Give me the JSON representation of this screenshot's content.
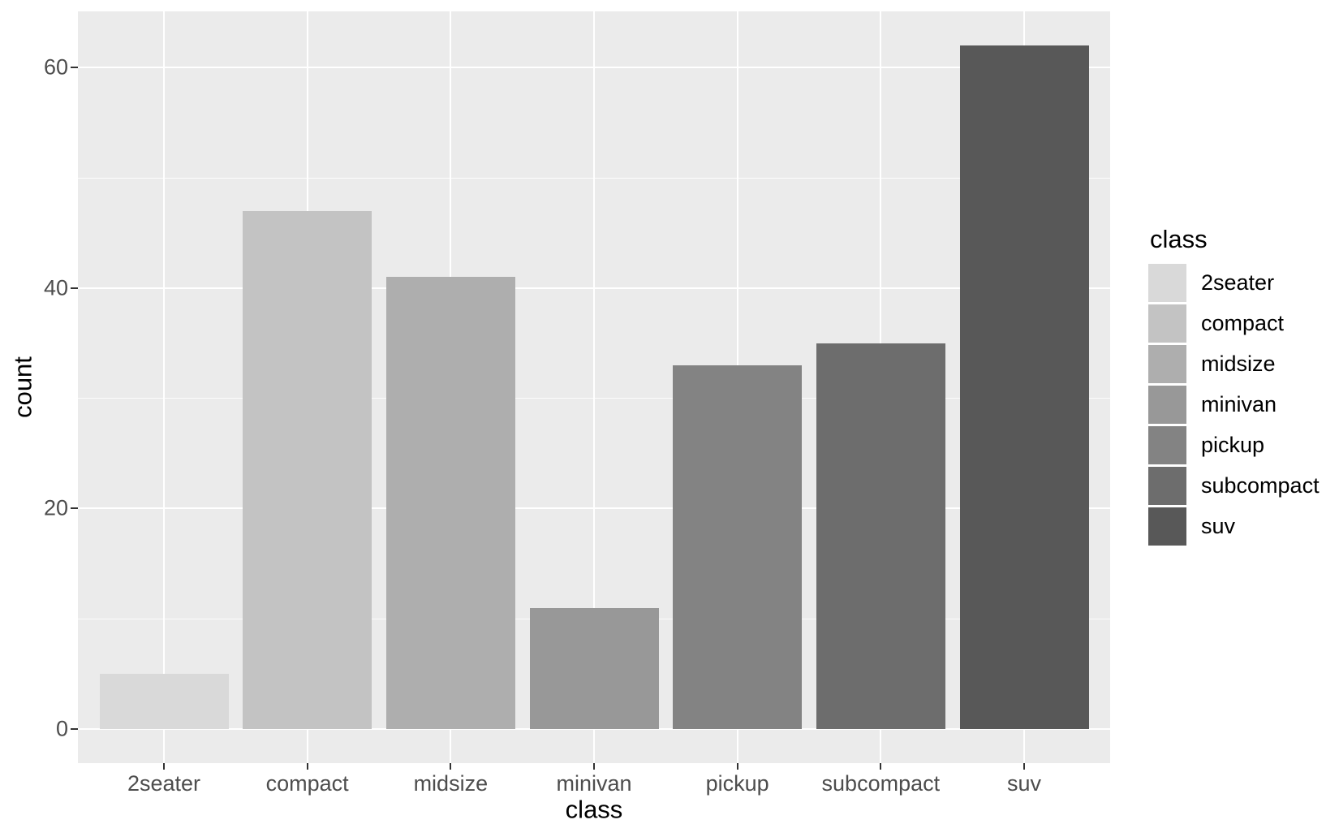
{
  "chart_data": {
    "type": "bar",
    "title": "",
    "categories": [
      "2seater",
      "compact",
      "midsize",
      "minivan",
      "pickup",
      "subcompact",
      "suv"
    ],
    "values": [
      5,
      47,
      41,
      11,
      33,
      35,
      62
    ],
    "xlabel": "class",
    "ylabel": "count",
    "ylim": [
      -3.1,
      65.1
    ],
    "y_major_ticks": [
      0,
      20,
      40,
      60
    ],
    "y_minor_ticks": [
      10,
      30,
      50
    ],
    "grid": "on",
    "bar_colors": [
      "#D9D9D9",
      "#C3C3C3",
      "#AEAEAE",
      "#989898",
      "#838383",
      "#6D6D6D",
      "#585858"
    ],
    "legend": {
      "title": "class",
      "position": "right",
      "entries": [
        "2seater",
        "compact",
        "midsize",
        "minivan",
        "pickup",
        "subcompact",
        "suv"
      ]
    }
  },
  "colors": {
    "page_bg": "#FFFFFF",
    "panel_bg": "#EBEBEB",
    "gridline": "#FFFFFF",
    "tick_mark": "#333333",
    "tick_label": "#4D4D4D",
    "axis_title": "#000000"
  }
}
